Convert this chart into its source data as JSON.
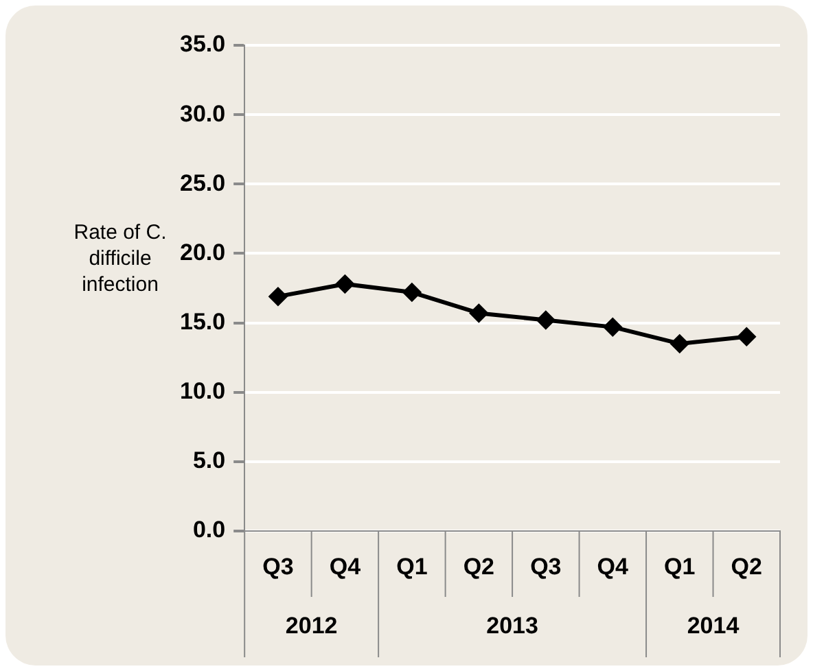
{
  "chart_data": {
    "type": "line",
    "ylabel": "Rate of C. difficile infection",
    "categories": [
      "Q3",
      "Q4",
      "Q1",
      "Q2",
      "Q3",
      "Q4",
      "Q1",
      "Q2"
    ],
    "series": [
      {
        "color": "#000000",
        "values": [
          16.9,
          17.8,
          17.2,
          15.7,
          15.2,
          14.7,
          13.5,
          14.0
        ]
      }
    ],
    "annotations": [
      "2012",
      "2013",
      "2014"
    ],
    "ylim": [
      0,
      35
    ],
    "yticks": [
      {
        "value": 0,
        "label": "0.0"
      },
      {
        "value": 5,
        "label": "5.0"
      },
      {
        "value": 10,
        "label": "10.0"
      },
      {
        "value": 15,
        "label": "15.0"
      },
      {
        "value": 20,
        "label": "20.0"
      },
      {
        "value": 25,
        "label": "25.0"
      },
      {
        "value": 30,
        "label": "30.0"
      },
      {
        "value": 35,
        "label": "35.0"
      }
    ],
    "grid": "y",
    "legend": false,
    "marker": "diamond",
    "line_style": "solid"
  }
}
